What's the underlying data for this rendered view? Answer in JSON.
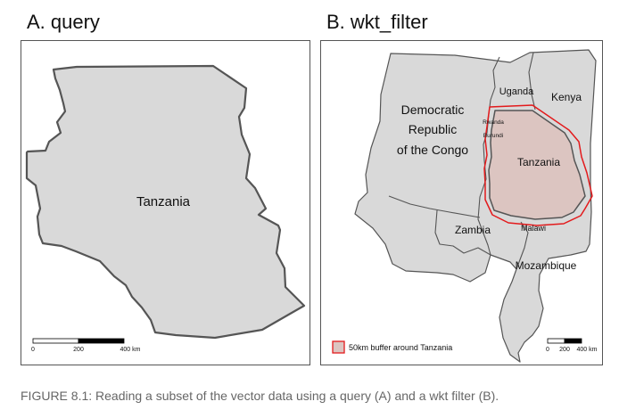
{
  "panelA": {
    "title": "A. query",
    "country_label": "Tanzania",
    "scalebar": {
      "ticks": [
        "0",
        "200",
        "400 km"
      ]
    }
  },
  "panelB": {
    "title": "B. wkt_filter",
    "labels": {
      "drc": [
        "Democratic",
        "Republic",
        "of the Congo"
      ],
      "uganda": "Uganda",
      "kenya": "Kenya",
      "rwanda": "Rwanda",
      "burundi": "Burundi",
      "tanzania": "Tanzania",
      "zambia": "Zambia",
      "malawi": "Malawi",
      "mozambique": "Mozambique"
    },
    "legend": {
      "label": "50km buffer around Tanzania"
    },
    "scalebar": {
      "ticks": [
        "0",
        "200",
        "400 km"
      ]
    }
  },
  "caption": "FIGURE 8.1: Reading a subset of the vector data using a query (A) and a wkt filter (B).",
  "colors": {
    "land": "#d9d9d9",
    "border": "#555555",
    "buffer": "#e31a1c",
    "tanzania_highlight": "#dcc5c1"
  }
}
